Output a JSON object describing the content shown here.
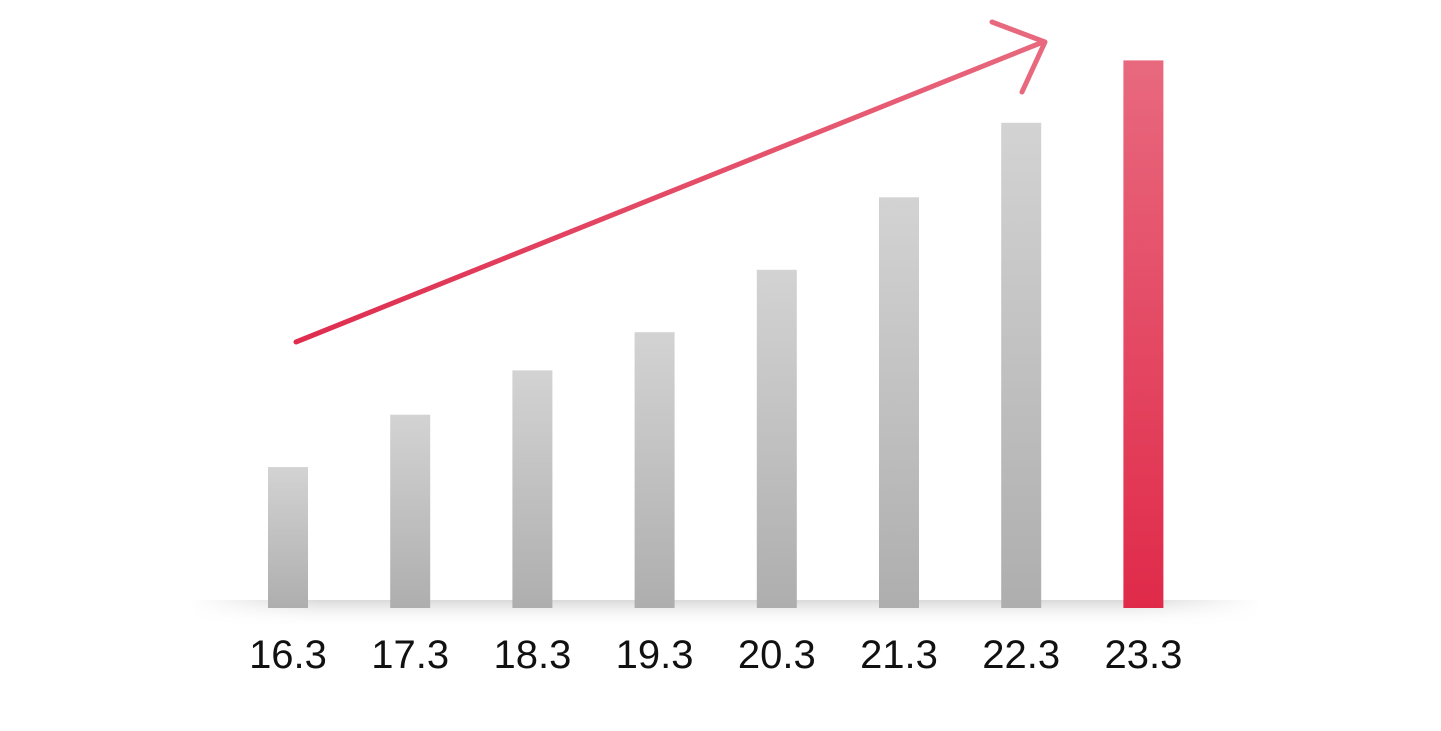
{
  "chart_data": {
    "type": "bar",
    "categories": [
      "16.3",
      "17.3",
      "18.3",
      "19.3",
      "20.3",
      "21.3",
      "22.3",
      "23.3"
    ],
    "values": [
      3.5,
      4.8,
      5.9,
      6.85,
      8.4,
      10.2,
      12.05,
      13.6
    ],
    "ylim": [
      0,
      15
    ],
    "grid": false,
    "highlight_index": 7,
    "colors": {
      "bar": "#b3b3b3",
      "bar_top": "#d3d3d3",
      "highlight": "#e03050",
      "highlight_top": "#e8697e",
      "trend_arrow": "#e03a58",
      "baseline_shadow": "#cfcfcf"
    },
    "annotations": [
      {
        "type": "trend-arrow",
        "direction": "up-right"
      }
    ]
  }
}
